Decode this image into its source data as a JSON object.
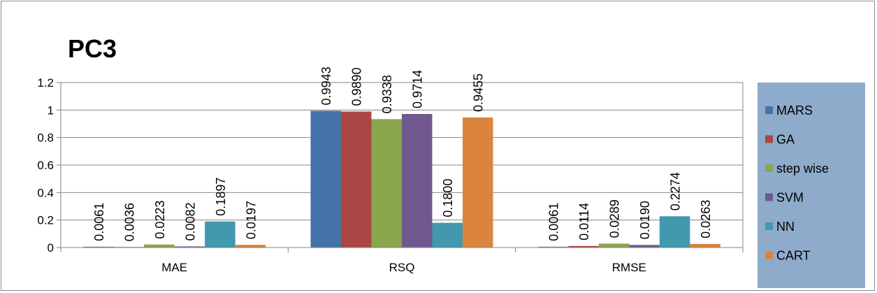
{
  "chart_data": {
    "type": "bar",
    "title": "PC3",
    "xlabel": "",
    "ylabel": "",
    "categories": [
      "MAE",
      "RSQ",
      "RMSE"
    ],
    "ylim": [
      0,
      1.2
    ],
    "yticks": [
      "0",
      "0.2",
      "0.4",
      "0.6",
      "0.8",
      "1",
      "1.2"
    ],
    "grid": true,
    "legend_position": "right",
    "series": [
      {
        "name": "MARS",
        "color": "#4572a7",
        "values": [
          0.0061,
          0.9943,
          0.0061
        ],
        "labels": [
          "0.0061",
          "0.9943",
          "0.0061"
        ]
      },
      {
        "name": "GA",
        "color": "#aa4643",
        "values": [
          0.0036,
          0.989,
          0.0114
        ],
        "labels": [
          "0.0036",
          "0.9890",
          "0.0114"
        ]
      },
      {
        "name": "step wise",
        "color": "#89a54e",
        "values": [
          0.0223,
          0.9338,
          0.0289
        ],
        "labels": [
          "0.0223",
          "0.9338",
          "0.0289"
        ]
      },
      {
        "name": "SVM",
        "color": "#71588f",
        "values": [
          0.0082,
          0.9714,
          0.019
        ],
        "labels": [
          "0.0082",
          "0.9714",
          "0.0190"
        ]
      },
      {
        "name": "NN",
        "color": "#4198af",
        "values": [
          0.1897,
          0.18,
          0.2274
        ],
        "labels": [
          "0.1897",
          "0.1800",
          "0.2274"
        ]
      },
      {
        "name": "CART",
        "color": "#db843d",
        "values": [
          0.0197,
          0.9455,
          0.0263
        ],
        "labels": [
          "0.0197",
          "0.9455",
          "0.0263"
        ]
      }
    ],
    "legend_background": "#8eabcc"
  }
}
